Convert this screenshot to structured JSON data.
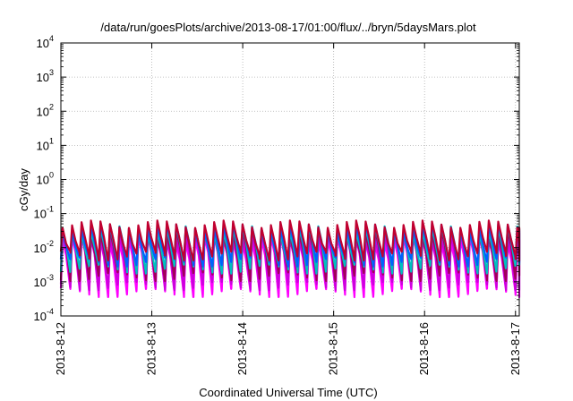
{
  "chart_data": {
    "type": "line",
    "title": "/data/run/goesPlots/archive/2013-08-17/01:00/flux/../bryn/5daysMars.plot",
    "xlabel": "Coordinated Universal Time (UTC)",
    "ylabel": "cGy/day",
    "yscale": "log",
    "ylim": [
      0.0001,
      10000
    ],
    "yticks": [
      {
        "base": "10",
        "exp": "-4",
        "value": 0.0001
      },
      {
        "base": "10",
        "exp": "-3",
        "value": 0.001
      },
      {
        "base": "10",
        "exp": "-2",
        "value": 0.01
      },
      {
        "base": "10",
        "exp": "-1",
        "value": 0.1
      },
      {
        "base": "10",
        "exp": "0",
        "value": 1
      },
      {
        "base": "10",
        "exp": "1",
        "value": 10
      },
      {
        "base": "10",
        "exp": "2",
        "value": 100
      },
      {
        "base": "10",
        "exp": "3",
        "value": 1000
      },
      {
        "base": "10",
        "exp": "4",
        "value": 10000
      }
    ],
    "xlim": [
      "2013-08-12T00:00",
      "2013-08-17T01:00"
    ],
    "xticks": [
      {
        "label": "2013-8-12",
        "value": "2013-08-12T00:00"
      },
      {
        "label": "2013-8-13",
        "value": "2013-08-13T00:00"
      },
      {
        "label": "2013-8-14",
        "value": "2013-08-14T00:00"
      },
      {
        "label": "2013-8-15",
        "value": "2013-08-15T00:00"
      },
      {
        "label": "2013-8-16",
        "value": "2013-08-16T00:00"
      },
      {
        "label": "2013-8-17",
        "value": "2013-08-17T00:00"
      }
    ],
    "grid": true,
    "cycle_hours": 2.5,
    "series": [
      {
        "color": "#ff00ff",
        "trough": 0.0005,
        "peak": 0.017
      },
      {
        "color": "#cc00dd",
        "trough": 0.0008,
        "peak": 0.022
      },
      {
        "color": "#a0005a",
        "trough": 0.0015,
        "peak": 0.03
      },
      {
        "color": "#00c0c0",
        "trough": 0.0025,
        "peak": 0.035
      },
      {
        "color": "#0060ff",
        "trough": 0.004,
        "peak": 0.04
      },
      {
        "color": "#c00030",
        "trough": 0.006,
        "peak": 0.05
      }
    ]
  }
}
